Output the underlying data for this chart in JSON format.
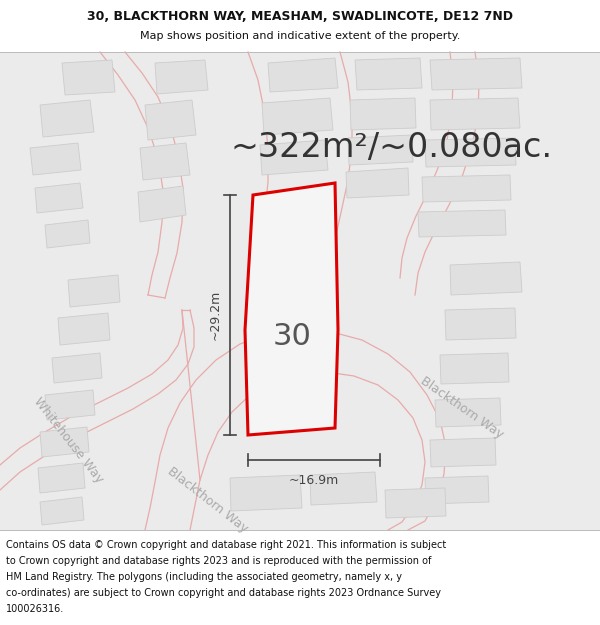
{
  "title_line1": "30, BLACKTHORN WAY, MEASHAM, SWADLINCOTE, DE12 7ND",
  "title_line2": "Map shows position and indicative extent of the property.",
  "area_text": "~322m²/~0.080ac.",
  "label_30": "30",
  "dim_height": "~29.2m",
  "dim_width": "~16.9m",
  "label_blackthorn_right": "Blackthorn Way",
  "label_whitehouse": "Whitehouse Way",
  "label_blackthorn_bottom": "Blackthorn Way",
  "footer_lines": [
    "Contains OS data © Crown copyright and database right 2021. This information is subject",
    "to Crown copyright and database rights 2023 and is reproduced with the permission of",
    "HM Land Registry. The polygons (including the associated geometry, namely x, y",
    "co-ordinates) are subject to Crown copyright and database rights 2023 Ordnance Survey",
    "100026316."
  ],
  "map_bg": "#ebebeb",
  "road_outline_color": "#e8aaaa",
  "building_fill": "#e0e0e0",
  "building_edge": "#cccccc",
  "plot_edge_color": "#dd0000",
  "plot_fill_color": "#f5f5f5",
  "dim_color": "#444444",
  "text_color": "#333333",
  "road_label_color": "#aaaaaa",
  "footer_bg": "#ffffff",
  "title_bg": "#ffffff",
  "area_fontsize": 24,
  "title_fontsize": 9,
  "subtitle_fontsize": 8,
  "label30_fontsize": 22,
  "dim_fontsize": 9,
  "road_label_fontsize": 9,
  "footer_fontsize": 7
}
